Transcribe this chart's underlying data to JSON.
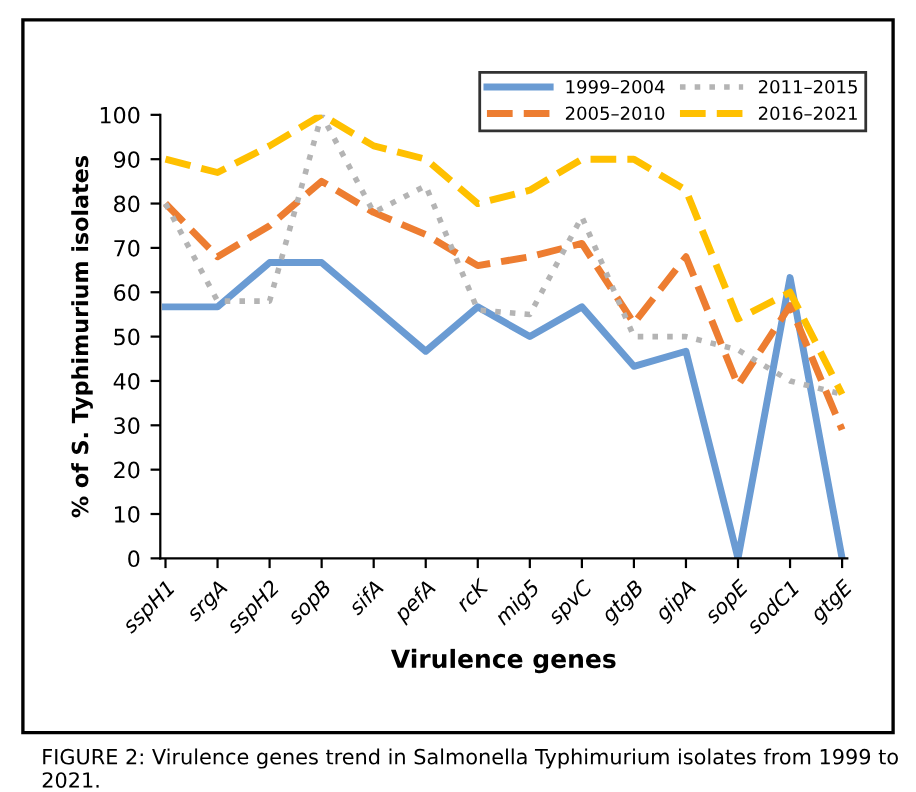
{
  "chart_data": {
    "type": "line",
    "xlabel": "Virulence genes",
    "ylabel": "% of S. Typhimurium isolates",
    "categories": [
      "sspH1",
      "srgA",
      "sspH2",
      "sopB",
      "sifA",
      "pefA",
      "rcK",
      "mig5",
      "spvC",
      "gtgB",
      "gipA",
      "sopE",
      "sodC1",
      "gtgE"
    ],
    "ylim": [
      0,
      100
    ],
    "yticks": [
      0,
      10,
      20,
      30,
      40,
      50,
      60,
      70,
      80,
      90,
      100
    ],
    "grid": false,
    "legend": "top right",
    "marker": "none",
    "series": [
      {
        "name": "1999–2004",
        "color": "#6a9bd3",
        "line_style": "solid",
        "values": [
          56.7,
          56.7,
          66.7,
          66.7,
          56.7,
          46.7,
          56.7,
          50,
          56.7,
          43.3,
          46.7,
          0,
          63.3,
          0
        ]
      },
      {
        "name": "2005–2010",
        "color": "#ed7d31",
        "line_style": "dashed",
        "values": [
          80,
          68,
          75,
          85,
          78,
          73,
          66,
          68,
          71,
          53,
          68,
          39,
          57,
          29
        ]
      },
      {
        "name": "2011–2015",
        "color": "#b4b4b4",
        "line_style": "dotted",
        "values": [
          80,
          58,
          58,
          100,
          78,
          84,
          56,
          55,
          77,
          50,
          50,
          47,
          40,
          37
        ]
      },
      {
        "name": "2016–2021",
        "color": "#ffc000",
        "line_style": "dashed",
        "values": [
          90,
          87,
          93,
          100,
          93,
          90,
          80,
          83,
          90,
          90,
          83,
          54,
          60,
          37
        ]
      }
    ],
    "annotations": [
      "FIGURE 2: Virulence genes trend in Salmonella Typhimurium isolates from 1999 to 2021."
    ]
  }
}
